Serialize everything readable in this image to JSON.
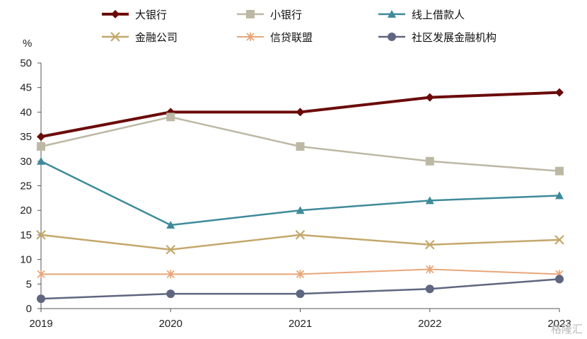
{
  "chart_data": {
    "type": "line",
    "unit_label": "%",
    "x": [
      "2019",
      "2020",
      "2021",
      "2022",
      "2023"
    ],
    "ylim": [
      0,
      50
    ],
    "yticks": [
      0,
      5,
      10,
      15,
      20,
      25,
      30,
      35,
      40,
      45,
      50
    ],
    "grid": false,
    "legend_position": "top",
    "series": [
      {
        "name": "大银行",
        "values": [
          35,
          40,
          40,
          43,
          44
        ],
        "color": "#6b0a0a",
        "marker": "diamond",
        "width": 4
      },
      {
        "name": "小银行",
        "values": [
          33,
          39,
          33,
          30,
          28
        ],
        "color": "#bdb8a4",
        "marker": "square",
        "width": 2.5
      },
      {
        "name": "线上借款人",
        "values": [
          30,
          17,
          20,
          22,
          23
        ],
        "color": "#3e8a9a",
        "marker": "triangle",
        "width": 2.5
      },
      {
        "name": "金融公司",
        "values": [
          15,
          12,
          15,
          13,
          14
        ],
        "color": "#c3a86b",
        "marker": "x",
        "width": 2.5
      },
      {
        "name": "信贷联盟",
        "values": [
          7,
          7,
          7,
          8,
          7
        ],
        "color": "#e8a679",
        "marker": "star",
        "width": 2
      },
      {
        "name": "社区发展金融机构",
        "values": [
          2,
          3,
          3,
          4,
          6
        ],
        "color": "#5f6680",
        "marker": "circle",
        "width": 2.5
      }
    ]
  },
  "watermark": "格隆汇"
}
